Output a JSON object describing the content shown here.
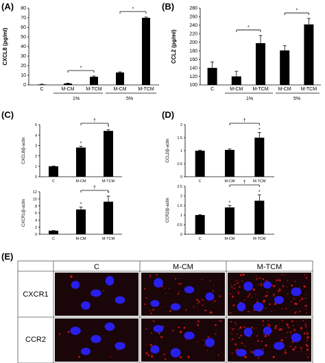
{
  "panels": {
    "A": "(A)",
    "B": "(B)",
    "C": "(C)",
    "D": "(D)",
    "E": "(E)"
  },
  "pct_labels": {
    "low": "1%",
    "high": "5%"
  },
  "sig_star": "*",
  "sig_dagger": "†",
  "chart_data": [
    {
      "id": "A",
      "type": "bar",
      "ylabel": "CXCL8 (pg/ml)",
      "ylim": [
        0,
        80
      ],
      "yticks": [
        0,
        10,
        20,
        30,
        40,
        50,
        60,
        70,
        80
      ],
      "categories": [
        "C",
        "M-CM",
        "M-TCM",
        "M-CM",
        "M-TCM"
      ],
      "values": [
        0.5,
        1.5,
        8.5,
        13,
        70
      ],
      "errors": [
        0.3,
        0.4,
        0.8,
        0.6,
        0.8
      ],
      "groups": [
        "",
        "1%",
        "1%",
        "5%",
        "5%"
      ],
      "significance": [
        [
          1,
          2,
          "*"
        ],
        [
          3,
          4,
          "*"
        ]
      ]
    },
    {
      "id": "B",
      "type": "bar",
      "ylabel": "CCL2 (pg/ml)",
      "ylim": [
        100,
        280
      ],
      "yticks": [
        100,
        120,
        140,
        160,
        180,
        200,
        220,
        240,
        260,
        280
      ],
      "categories": [
        "C",
        "M-CM",
        "M-TCM",
        "M-CM",
        "M-TCM"
      ],
      "values": [
        140,
        120,
        198,
        181,
        242
      ],
      "errors": [
        14,
        12,
        18,
        11,
        14
      ],
      "groups": [
        "",
        "1%",
        "1%",
        "5%",
        "5%"
      ],
      "significance": [
        [
          1,
          2,
          "*"
        ],
        [
          3,
          4,
          "*"
        ]
      ]
    },
    {
      "id": "C-top",
      "type": "bar",
      "ylabel": "CXCL8/β-actin",
      "ylim": [
        0,
        5
      ],
      "yticks": [
        0,
        1,
        2,
        3,
        4,
        5
      ],
      "categories": [
        "C",
        "M-CM",
        "M-TCM"
      ],
      "values": [
        1.0,
        2.8,
        4.4
      ],
      "errors": [
        0.03,
        0.12,
        0.12
      ],
      "stars": [
        "",
        "*",
        "*"
      ],
      "significance": [
        [
          1,
          2,
          "†"
        ]
      ]
    },
    {
      "id": "C-bottom",
      "type": "bar",
      "ylabel": "CXCR1/β-actin",
      "ylim": [
        0,
        12
      ],
      "yticks": [
        0,
        2,
        4,
        6,
        8,
        10,
        12
      ],
      "categories": [
        "C",
        "M-CM",
        "M-TCM"
      ],
      "values": [
        1.0,
        7.0,
        9.2
      ],
      "errors": [
        0.05,
        0.7,
        1.6
      ],
      "stars": [
        "",
        "*",
        "*"
      ],
      "significance": [
        [
          1,
          2,
          "†"
        ]
      ]
    },
    {
      "id": "D-top",
      "type": "bar",
      "ylabel": "CCL2/β-actin",
      "ylim": [
        0,
        2
      ],
      "yticks": [
        0,
        0.5,
        1,
        1.5,
        2
      ],
      "categories": [
        "C",
        "M-CM",
        "M-TCM"
      ],
      "values": [
        1.0,
        1.03,
        1.5
      ],
      "errors": [
        0.02,
        0.04,
        0.2
      ],
      "stars": [
        "",
        "",
        "*"
      ],
      "significance": [
        [
          1,
          2,
          "†"
        ]
      ]
    },
    {
      "id": "D-bottom",
      "type": "bar",
      "ylabel": "CCR2/β-actin",
      "ylim": [
        0,
        2.5
      ],
      "yticks": [
        0,
        0.5,
        1,
        1.5,
        2,
        2.5
      ],
      "categories": [
        "C",
        "M-CM",
        "M-TCM"
      ],
      "values": [
        1.0,
        1.4,
        1.75
      ],
      "errors": [
        0.02,
        0.1,
        0.3
      ],
      "stars": [
        "",
        "*",
        "*"
      ],
      "significance": [
        [
          1,
          2,
          "†"
        ]
      ]
    }
  ],
  "micrograph_grid": {
    "columns": [
      "C",
      "M-CM",
      "M-TCM"
    ],
    "rows": [
      "CXCR1",
      "CCR2"
    ],
    "cell_background": "#1a0508",
    "nucleus_color": "#2a22ff",
    "marker_color": "#e01818"
  }
}
